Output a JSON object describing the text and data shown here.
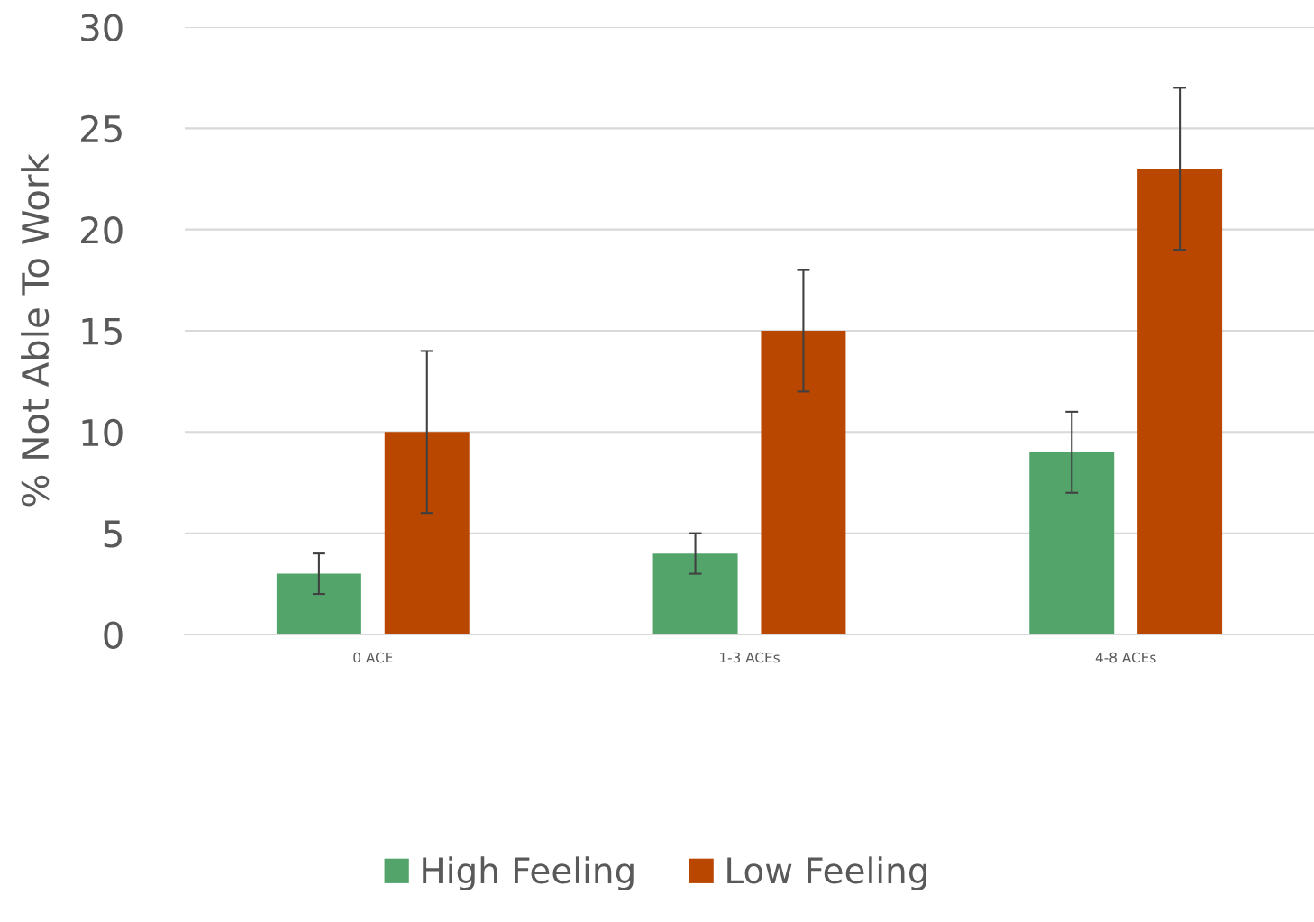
{
  "chart_data": {
    "type": "bar",
    "ylabel": "% Not Able To Work",
    "categories": [
      "0 ACE",
      "1-3 ACEs",
      "4-8 ACEs"
    ],
    "series": [
      {
        "name": "High Feeling",
        "color": "#52a46b",
        "values": [
          3,
          4,
          9
        ],
        "errors": [
          1,
          1,
          2
        ]
      },
      {
        "name": "Low Feeling",
        "color": "#b94700",
        "values": [
          10,
          15,
          23
        ],
        "errors": [
          4,
          3,
          4
        ]
      }
    ],
    "ylim": [
      0,
      30
    ],
    "yticks": [
      0,
      5,
      10,
      15,
      20,
      25,
      30
    ],
    "grid": "y",
    "legend": "bottom"
  }
}
